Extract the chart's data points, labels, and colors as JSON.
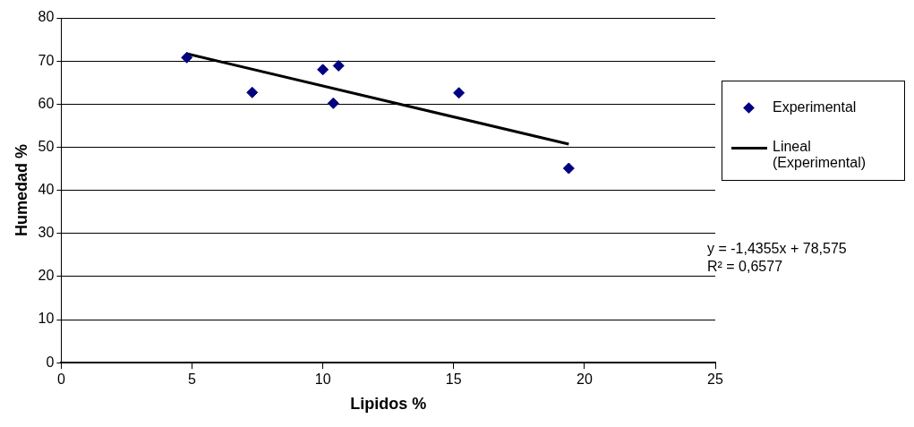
{
  "chart_data": {
    "type": "scatter",
    "xlabel": "Lipidos %",
    "ylabel": "Humedad %",
    "xlim": [
      0,
      25
    ],
    "xticks": [
      0,
      5,
      10,
      15,
      20,
      25
    ],
    "ylim": [
      0,
      80
    ],
    "yticks": [
      0,
      10,
      20,
      30,
      40,
      50,
      60,
      70,
      80
    ],
    "grid": "y",
    "legend": "right",
    "marker": "diamond",
    "series": [
      {
        "name": "Experimental",
        "color": "#000080",
        "x": [
          4.8,
          7.3,
          10.0,
          10.6,
          10.4,
          15.2,
          19.4
        ],
        "values": [
          70.8,
          62.7,
          68.0,
          68.9,
          60.2,
          62.6,
          45.1
        ]
      },
      {
        "name": "Lineal (Experimental)",
        "type": "line",
        "color": "#000000",
        "x": [
          4.8,
          19.4
        ],
        "values": [
          71.7,
          50.7
        ],
        "marker": "none",
        "line_style": "solid"
      }
    ],
    "annotations": [
      "y = -1,4355x + 78,575",
      "R² = 0,6577"
    ]
  }
}
